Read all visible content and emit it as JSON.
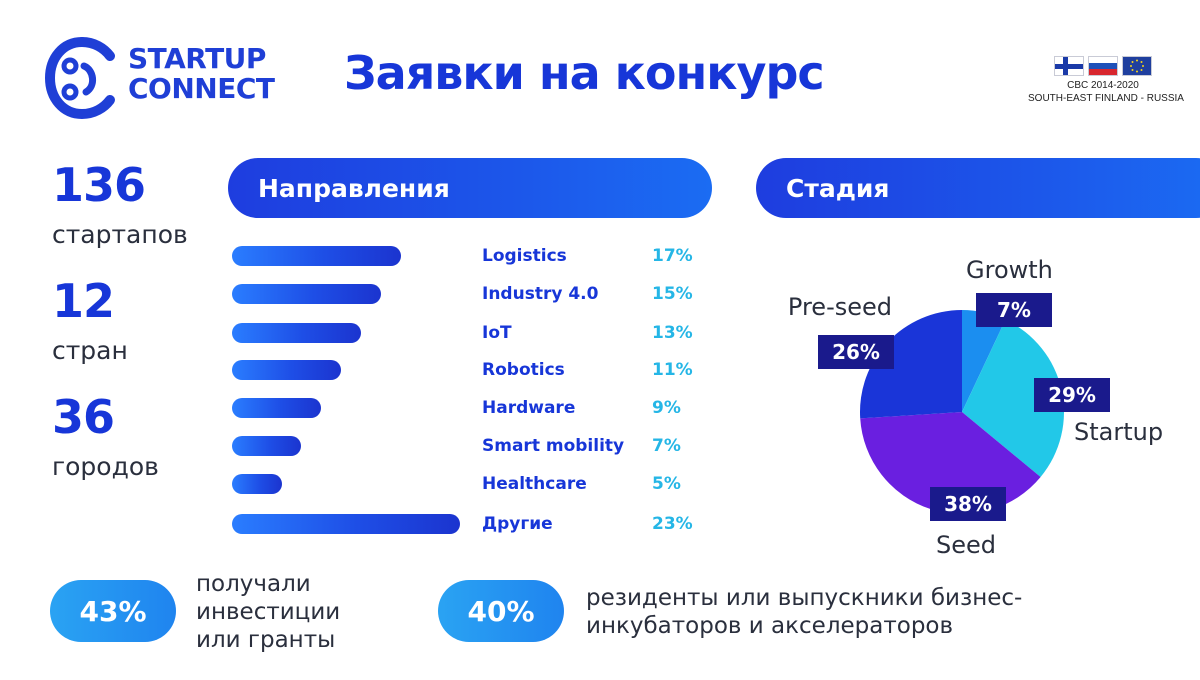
{
  "header": {
    "logo_line1": "STARTUP",
    "logo_line2": "CONNECT",
    "title": "Заявки на конкурс",
    "program_line1": "CBC 2014-2020",
    "program_line2": "SOUTH-EAST FINLAND - RUSSIA",
    "flags": [
      "finland-flag",
      "russia-flag",
      "eu-flag"
    ]
  },
  "stats": [
    {
      "value": "136",
      "label": "стартапов"
    },
    {
      "value": "12",
      "label": "стран"
    },
    {
      "value": "36",
      "label": "городов"
    }
  ],
  "bottom": [
    {
      "value": "43%",
      "desc_lines": [
        "получали",
        "инвестиции",
        "или гранты"
      ]
    },
    {
      "value": "40%",
      "desc_lines": [
        "резиденты или выпускники бизнес-",
        "инкубаторов и акселераторов"
      ]
    }
  ],
  "colors": {
    "primary": "#1736d8",
    "accent": "#25b6e6",
    "pie": [
      "#1b8ef0",
      "#22c8e8",
      "#6a1fe0",
      "#1a35d8"
    ],
    "label_box": "#1a1a8c"
  },
  "chart_data": [
    {
      "type": "bar",
      "title": "Направления",
      "orientation": "horizontal",
      "unit": "%",
      "categories": [
        "Logistics",
        "Industry 4.0",
        "IoT",
        "Robotics",
        "Hardware",
        "Smart mobility",
        "Healthcare",
        "Другие"
      ],
      "values": [
        17,
        15,
        13,
        11,
        9,
        7,
        5,
        23
      ],
      "value_labels": [
        "17%",
        "15%",
        "13%",
        "11%",
        "9%",
        "7%",
        "5%",
        "23%"
      ]
    },
    {
      "type": "pie",
      "title": "Стадия",
      "categories": [
        "Growth",
        "Startup",
        "Seed",
        "Pre-seed"
      ],
      "values": [
        7,
        29,
        38,
        26
      ],
      "value_labels": [
        "7%",
        "29%",
        "38%",
        "26%"
      ]
    }
  ]
}
